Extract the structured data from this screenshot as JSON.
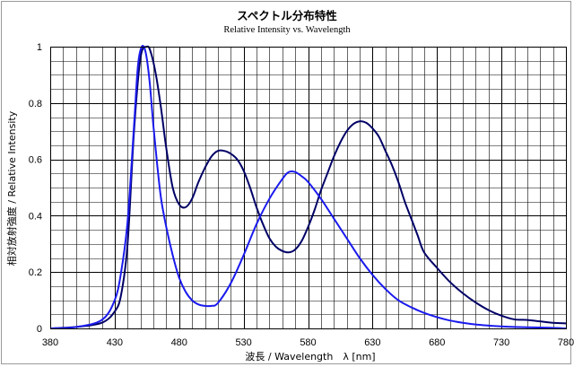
{
  "chart_data": {
    "type": "line",
    "title": "スペクトル分布特性",
    "subtitle": "Relative Intensity vs. Wavelength",
    "xlabel": "波長 / Wavelength　λ [nm]",
    "ylabel": "相対放射強度 / Relative Intensity",
    "xlim": [
      380,
      780
    ],
    "ylim": [
      0,
      1
    ],
    "x_ticks": [
      380,
      430,
      480,
      530,
      580,
      630,
      680,
      730,
      780
    ],
    "y_ticks": [
      0,
      0.2,
      0.4,
      0.6,
      0.8,
      1
    ],
    "y_tick_labels": [
      "0",
      "0.2",
      "0.4",
      "0.6",
      "0.8",
      "1"
    ],
    "grid": true,
    "minor_grid_x_step": 10,
    "minor_grid_y_step": 0.05,
    "series": [
      {
        "color": "#000066",
        "x": [
          380,
          400,
          420,
          430,
          435,
          440,
          445,
          450,
          455,
          458,
          462,
          466,
          470,
          475,
          480,
          485,
          490,
          495,
          500,
          505,
          510,
          515,
          520,
          525,
          530,
          535,
          540,
          545,
          550,
          555,
          560,
          565,
          570,
          575,
          580,
          585,
          590,
          595,
          600,
          605,
          610,
          615,
          620,
          625,
          630,
          635,
          640,
          645,
          650,
          655,
          660,
          665,
          670,
          680,
          690,
          700,
          710,
          720,
          730,
          740,
          750,
          760,
          770,
          780
        ],
        "values": [
          0.0,
          0.005,
          0.02,
          0.06,
          0.12,
          0.3,
          0.7,
          0.96,
          1.0,
          0.98,
          0.9,
          0.78,
          0.64,
          0.5,
          0.44,
          0.43,
          0.46,
          0.52,
          0.57,
          0.61,
          0.63,
          0.63,
          0.62,
          0.6,
          0.56,
          0.5,
          0.43,
          0.37,
          0.32,
          0.29,
          0.275,
          0.27,
          0.28,
          0.31,
          0.36,
          0.42,
          0.49,
          0.55,
          0.61,
          0.66,
          0.7,
          0.725,
          0.735,
          0.73,
          0.71,
          0.68,
          0.63,
          0.58,
          0.52,
          0.45,
          0.39,
          0.33,
          0.27,
          0.215,
          0.165,
          0.125,
          0.092,
          0.065,
          0.045,
          0.032,
          0.03,
          0.025,
          0.02,
          0.018
        ]
      },
      {
        "color": "#1a1aee",
        "x": [
          380,
          400,
          420,
          430,
          435,
          440,
          445,
          448,
          451,
          454,
          457,
          460,
          463,
          466,
          470,
          475,
          480,
          485,
          490,
          495,
          500,
          505,
          510,
          520,
          530,
          540,
          550,
          560,
          565,
          570,
          575,
          580,
          590,
          600,
          610,
          620,
          630,
          640,
          650,
          660,
          670,
          680,
          690,
          700,
          710,
          720,
          730,
          740,
          750,
          760,
          770,
          780
        ],
        "values": [
          0.0,
          0.005,
          0.03,
          0.1,
          0.2,
          0.38,
          0.72,
          0.93,
          1.0,
          0.98,
          0.88,
          0.72,
          0.58,
          0.46,
          0.36,
          0.26,
          0.18,
          0.13,
          0.1,
          0.085,
          0.08,
          0.08,
          0.09,
          0.16,
          0.26,
          0.37,
          0.46,
          0.53,
          0.555,
          0.555,
          0.54,
          0.52,
          0.46,
          0.39,
          0.32,
          0.25,
          0.19,
          0.14,
          0.1,
          0.075,
          0.055,
          0.04,
          0.028,
          0.02,
          0.014,
          0.01,
          0.007,
          0.005,
          0.004,
          0.003,
          0.002,
          0.0
        ]
      }
    ]
  }
}
